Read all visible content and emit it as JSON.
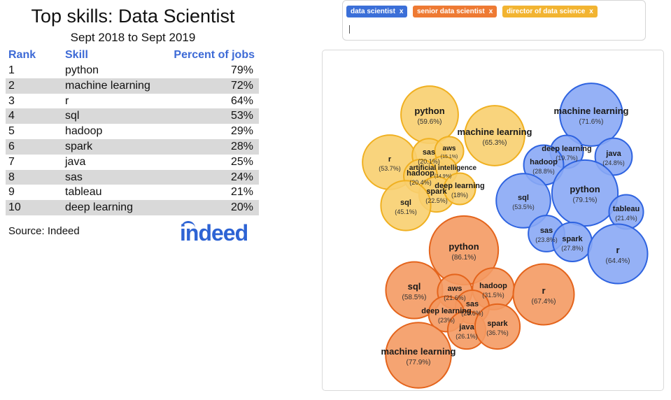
{
  "table": {
    "title": "Top skills: Data Scientist",
    "subtitle": "Sept 2018 to Sept 2019",
    "headers": {
      "rank": "Rank",
      "skill": "Skill",
      "percent": "Percent of jobs"
    },
    "rows": [
      {
        "rank": "1",
        "skill": "python",
        "percent": "79%"
      },
      {
        "rank": "2",
        "skill": "machine learning",
        "percent": "72%"
      },
      {
        "rank": "3",
        "skill": "r",
        "percent": "64%"
      },
      {
        "rank": "4",
        "skill": "sql",
        "percent": "53%"
      },
      {
        "rank": "5",
        "skill": "hadoop",
        "percent": "29%"
      },
      {
        "rank": "6",
        "skill": "spark",
        "percent": "28%"
      },
      {
        "rank": "7",
        "skill": "java",
        "percent": "25%"
      },
      {
        "rank": "8",
        "skill": "sas",
        "percent": "24%"
      },
      {
        "rank": "9",
        "skill": "tableau",
        "percent": "21%"
      },
      {
        "rank": "10",
        "skill": "deep learning",
        "percent": "20%"
      }
    ],
    "source": "Source: Indeed",
    "logo": "indeed"
  },
  "search": {
    "tags": [
      {
        "label": "data scientist",
        "close": "x",
        "color": "#3b6fd8"
      },
      {
        "label": "senior data scientist",
        "close": "x",
        "color": "#ee7a33"
      },
      {
        "label": "director of data science",
        "close": "x",
        "color": "#f2b431"
      }
    ]
  },
  "chart_data": {
    "type": "bubble",
    "series": [
      {
        "name": "director of data science",
        "color": "#f2b431",
        "points": [
          {
            "skill": "python",
            "percent": 59.6
          },
          {
            "skill": "machine learning",
            "percent": 65.3
          },
          {
            "skill": "r",
            "percent": 53.7
          },
          {
            "skill": "sas",
            "percent": 20.1
          },
          {
            "skill": "aws",
            "percent": 15.1
          },
          {
            "skill": "artificial intelligence",
            "percent": 14.9
          },
          {
            "skill": "hadoop",
            "percent": 20.4
          },
          {
            "skill": "spark",
            "percent": 22.5
          },
          {
            "skill": "deep learning",
            "percent": 18
          },
          {
            "skill": "sql",
            "percent": 45.1
          }
        ]
      },
      {
        "name": "data scientist",
        "color": "#4f7ff0",
        "points": [
          {
            "skill": "machine learning",
            "percent": 71.6
          },
          {
            "skill": "deep learning",
            "percent": 19.7
          },
          {
            "skill": "java",
            "percent": 24.8
          },
          {
            "skill": "hadoop",
            "percent": 28.8
          },
          {
            "skill": "python",
            "percent": 79.1
          },
          {
            "skill": "sql",
            "percent": 53.5
          },
          {
            "skill": "tableau",
            "percent": 21.4
          },
          {
            "skill": "sas",
            "percent": 23.8
          },
          {
            "skill": "spark",
            "percent": 27.8
          },
          {
            "skill": "r",
            "percent": 64.4
          }
        ]
      },
      {
        "name": "senior data scientist",
        "color": "#f08a4b",
        "points": [
          {
            "skill": "python",
            "percent": 86.1
          },
          {
            "skill": "sql",
            "percent": 58.5
          },
          {
            "skill": "aws",
            "percent": 21.6
          },
          {
            "skill": "hadoop",
            "percent": 31.5
          },
          {
            "skill": "r",
            "percent": 67.4
          },
          {
            "skill": "sas",
            "percent": 20.6
          },
          {
            "skill": "deep learning",
            "percent": 23
          },
          {
            "skill": "java",
            "percent": 26.1
          },
          {
            "skill": "spark",
            "percent": 36.7
          },
          {
            "skill": "machine learning",
            "percent": 77.9
          }
        ]
      }
    ]
  }
}
